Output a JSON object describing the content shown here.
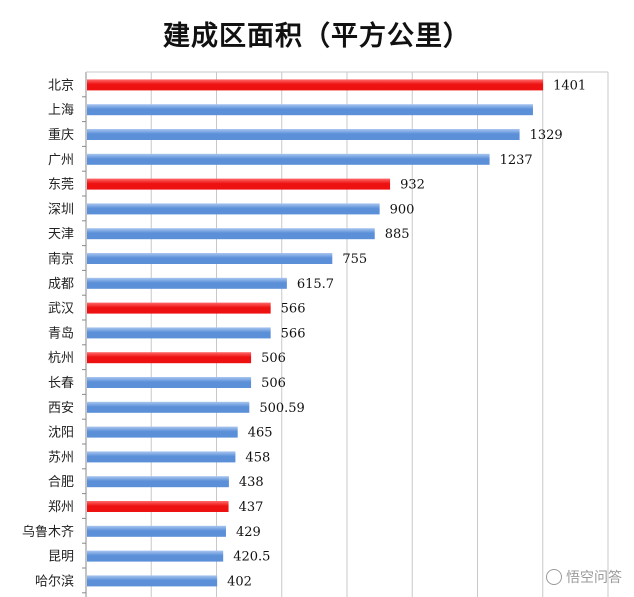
{
  "chart_data": {
    "type": "bar",
    "orientation": "horizontal",
    "title": "建成区面积（平方公里）",
    "categories": [
      "北京",
      "上海",
      "重庆",
      "广州",
      "东莞",
      "深圳",
      "天津",
      "南京",
      "成都",
      "武汉",
      "青岛",
      "杭州",
      "长春",
      "西安",
      "沈阳",
      "苏州",
      "合肥",
      "郑州",
      "乌鲁木齐",
      "昆明",
      "哈尔滨"
    ],
    "values": [
      1401,
      1370,
      1329,
      1237,
      932,
      900,
      885,
      755,
      615.7,
      566,
      566,
      506,
      506,
      500.59,
      465,
      458,
      438,
      437,
      429,
      420.5,
      402
    ],
    "value_labels": [
      "1401",
      "",
      "1329",
      "1237",
      "932",
      "900",
      "885",
      "755",
      "615.7",
      "566",
      "566",
      "506",
      "506",
      "500.59",
      "465",
      "458",
      "438",
      "437",
      "429",
      "420.5",
      "402"
    ],
    "highlighted": [
      true,
      false,
      false,
      false,
      true,
      false,
      false,
      false,
      false,
      true,
      false,
      true,
      false,
      false,
      false,
      false,
      false,
      true,
      false,
      false,
      false
    ],
    "xlim": [
      0,
      1600
    ],
    "grid": true,
    "colors": {
      "normal": "#5b8fd8",
      "normal_light": "#a9c6f0",
      "highlight": "#ee1111",
      "grid": "#c8c8c8",
      "axis": "#888888"
    }
  },
  "watermark": {
    "text": "悟空问答",
    "icon": "speech-bubble-icon"
  }
}
